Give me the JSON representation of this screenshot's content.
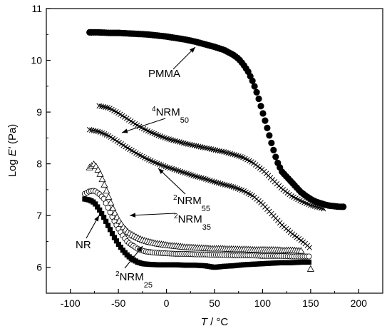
{
  "chart_data": {
    "type": "scatter",
    "title": "",
    "xlabel_var": "T",
    "xlabel_unit": " / °C",
    "ylabel_pre": "Log ",
    "ylabel_var": "E'",
    "ylabel_unit": " (Pa)",
    "xlim": [
      -125,
      225
    ],
    "ylim": [
      5.5,
      11
    ],
    "xticks": [
      -100,
      -50,
      0,
      50,
      100,
      150,
      200
    ],
    "yticks": [
      6,
      7,
      8,
      9,
      10,
      11
    ],
    "grid": false,
    "legend": "none",
    "series": [
      {
        "key": "pmma",
        "marker": "circle-filled",
        "x": [
          -80,
          -70,
          -60,
          -50,
          -40,
          -30,
          -20,
          -10,
          0,
          10,
          20,
          30,
          40,
          50,
          60,
          70,
          75,
          80,
          85,
          90,
          95,
          100,
          105,
          110,
          115,
          120,
          125,
          130,
          135,
          140,
          145,
          150,
          155,
          160,
          165,
          170,
          175,
          180,
          186
        ],
        "y": [
          10.54,
          10.54,
          10.53,
          10.53,
          10.52,
          10.51,
          10.5,
          10.48,
          10.46,
          10.43,
          10.4,
          10.36,
          10.31,
          10.26,
          10.2,
          10.1,
          10.03,
          9.92,
          9.78,
          9.58,
          9.32,
          9.0,
          8.68,
          8.35,
          8.05,
          7.85,
          7.75,
          7.65,
          7.55,
          7.45,
          7.38,
          7.32,
          7.27,
          7.24,
          7.21,
          7.19,
          7.18,
          7.17,
          7.17
        ]
      },
      {
        "key": "nrm50",
        "marker": "x-cross",
        "x": [
          -70,
          -60,
          -50,
          -40,
          -30,
          -20,
          -10,
          0,
          10,
          20,
          30,
          40,
          50,
          60,
          70,
          80,
          90,
          100,
          110,
          120,
          130,
          140,
          150,
          160,
          165
        ],
        "y": [
          9.12,
          9.08,
          8.98,
          8.86,
          8.74,
          8.64,
          8.56,
          8.49,
          8.44,
          8.39,
          8.35,
          8.31,
          8.27,
          8.23,
          8.18,
          8.12,
          8.02,
          7.88,
          7.7,
          7.52,
          7.38,
          7.28,
          7.2,
          7.15,
          7.12
        ]
      },
      {
        "key": "nrm55",
        "marker": "x-cross",
        "x": [
          -80,
          -70,
          -60,
          -50,
          -40,
          -30,
          -20,
          -10,
          0,
          10,
          20,
          30,
          40,
          50,
          60,
          70,
          80,
          90,
          100,
          110,
          120,
          130,
          140,
          145,
          150
        ],
        "y": [
          8.66,
          8.62,
          8.54,
          8.42,
          8.3,
          8.19,
          8.09,
          8.01,
          7.94,
          7.88,
          7.82,
          7.76,
          7.71,
          7.65,
          7.6,
          7.55,
          7.48,
          7.38,
          7.22,
          7.02,
          6.82,
          6.66,
          6.52,
          6.45,
          6.36
        ]
      },
      {
        "key": "nrm35",
        "marker": "triangle-open",
        "x": [
          -80,
          -75,
          -70,
          -65,
          -60,
          -55,
          -50,
          -45,
          -40,
          -35,
          -30,
          -25,
          -20,
          -10,
          0,
          10,
          20,
          30,
          40,
          50,
          60,
          70,
          80,
          90,
          100,
          110,
          120,
          130,
          140,
          150
        ],
        "y": [
          7.93,
          8.0,
          7.85,
          7.62,
          7.35,
          7.1,
          6.92,
          6.78,
          6.68,
          6.62,
          6.57,
          6.53,
          6.5,
          6.46,
          6.43,
          6.41,
          6.39,
          6.38,
          6.37,
          6.36,
          6.36,
          6.35,
          6.35,
          6.34,
          6.34,
          6.34,
          6.33,
          6.33,
          6.32,
          5.97
        ]
      },
      {
        "key": "nrm25",
        "marker": "circle-open",
        "x": [
          -85,
          -80,
          -75,
          -70,
          -65,
          -60,
          -55,
          -50,
          -45,
          -40,
          -35,
          -30,
          -25,
          -20,
          -10,
          0,
          10,
          20,
          30,
          40,
          50,
          60,
          70,
          80,
          90,
          100,
          110,
          120,
          130,
          140,
          150
        ],
        "y": [
          7.42,
          7.47,
          7.48,
          7.42,
          7.32,
          7.12,
          6.92,
          6.75,
          6.6,
          6.48,
          6.42,
          6.36,
          6.32,
          6.3,
          6.28,
          6.27,
          6.26,
          6.26,
          6.25,
          6.25,
          6.24,
          6.24,
          6.23,
          6.23,
          6.23,
          6.22,
          6.22,
          6.22,
          6.21,
          6.21,
          6.21
        ]
      },
      {
        "key": "nr",
        "marker": "square-filled",
        "x": [
          -85,
          -80,
          -75,
          -70,
          -65,
          -60,
          -55,
          -50,
          -45,
          -40,
          -35,
          -30,
          -25,
          -20,
          -10,
          0,
          10,
          20,
          30,
          40,
          50,
          60,
          70,
          80,
          90,
          100,
          110,
          120,
          130,
          140,
          150
        ],
        "y": [
          7.32,
          7.3,
          7.25,
          7.12,
          6.96,
          6.78,
          6.6,
          6.45,
          6.32,
          6.22,
          6.15,
          6.1,
          6.07,
          6.06,
          6.05,
          6.05,
          6.05,
          6.04,
          6.04,
          6.03,
          6.0,
          6.02,
          6.03,
          6.05,
          6.06,
          6.07,
          6.08,
          6.09,
          6.09,
          6.1,
          6.1
        ]
      }
    ],
    "annotations": [
      {
        "key": "pmma",
        "parts": [
          {
            "t": "PMMA",
            "s": "n"
          }
        ]
      },
      {
        "key": "nrm50",
        "parts": [
          {
            "t": "4",
            "s": "sup"
          },
          {
            "t": "NRM",
            "s": "n"
          },
          {
            "t": "50",
            "s": "sub"
          }
        ]
      },
      {
        "key": "nrm55",
        "parts": [
          {
            "t": "2",
            "s": "sup"
          },
          {
            "t": "NRM",
            "s": "n"
          },
          {
            "t": "55",
            "s": "sub"
          }
        ]
      },
      {
        "key": "nrm35",
        "parts": [
          {
            "t": "2",
            "s": "sup"
          },
          {
            "t": "NRM",
            "s": "n"
          },
          {
            "t": "35",
            "s": "sub"
          }
        ]
      },
      {
        "key": "nr",
        "parts": [
          {
            "t": "NR",
            "s": "n"
          }
        ]
      },
      {
        "key": "nrm25",
        "parts": [
          {
            "t": "2",
            "s": "sup"
          },
          {
            "t": "NRM",
            "s": "n"
          },
          {
            "t": "25",
            "s": "sub"
          }
        ]
      }
    ]
  }
}
